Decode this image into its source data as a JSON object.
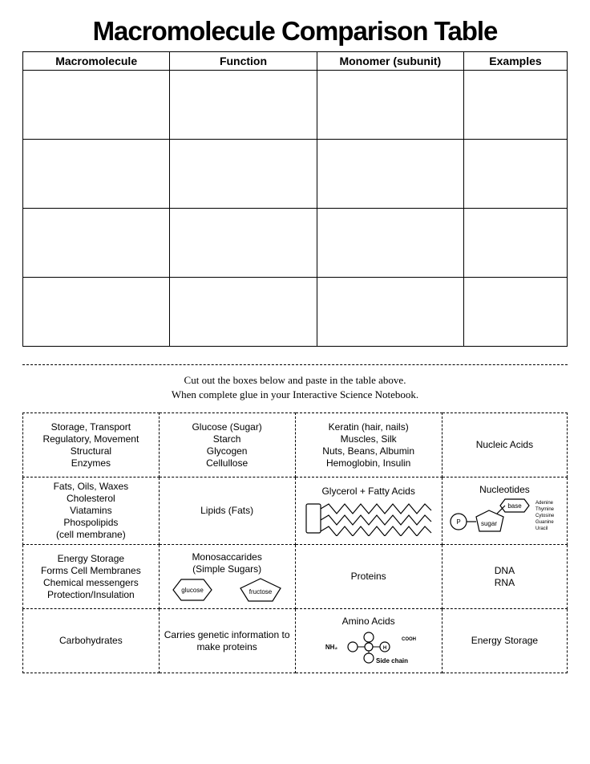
{
  "title": {
    "text": "Macromolecule Comparison Table",
    "fontsize": 33
  },
  "main_table": {
    "columns": [
      "Macromolecule",
      "Function",
      "Monomer (subunit)",
      "Examples"
    ],
    "header_fontsize": 14,
    "col_widths_pct": [
      27,
      27,
      27,
      19
    ],
    "blank_rows": 4
  },
  "instructions": {
    "line1": "Cut out the boxes below and paste in the table above.",
    "line2": "When complete glue in your Interactive Science Notebook.",
    "fontsize": 13
  },
  "cut_table": {
    "fontsize": 12,
    "col_widths_pct": [
      25,
      25,
      27,
      23
    ],
    "rows": [
      [
        {
          "type": "lines",
          "lines": [
            "Storage, Transport",
            "Regulatory, Movement",
            "Structural",
            "Enzymes"
          ]
        },
        {
          "type": "lines",
          "lines": [
            "Glucose (Sugar)",
            "Starch",
            "Glycogen",
            "Cellullose"
          ]
        },
        {
          "type": "lines",
          "lines": [
            "Keratin (hair, nails)",
            "Muscles, Silk",
            "Nuts, Beans, Albumin",
            "Hemoglobin, Insulin"
          ]
        },
        {
          "type": "lines",
          "lines": [
            "Nucleic Acids"
          ]
        }
      ],
      [
        {
          "type": "lines",
          "lines": [
            "Fats, Oils, Waxes",
            "Cholesterol",
            "Viatamins",
            "Phospolipids",
            "(cell membrane)"
          ]
        },
        {
          "type": "lines",
          "lines": [
            "Lipids (Fats)"
          ]
        },
        {
          "type": "glycerol",
          "title": "Glycerol + Fatty Acids"
        },
        {
          "type": "nucleotide",
          "title": "Nucleotides",
          "labels": {
            "p": "P",
            "base": "base",
            "sugar": "sugar"
          },
          "bases": [
            "Adenine",
            "Thymine",
            "Cytosine",
            "Guanine",
            "Uracil"
          ]
        }
      ],
      [
        {
          "type": "lines",
          "lines": [
            "Energy Storage",
            "Forms Cell Membranes",
            "Chemical messengers",
            "Protection/Insulation"
          ]
        },
        {
          "type": "monosacc",
          "title": "Monosaccarides",
          "subtitle": "(Simple Sugars)",
          "labels": {
            "glucose": "glucose",
            "fructose": "fructose"
          }
        },
        {
          "type": "lines",
          "lines": [
            "Proteins"
          ]
        },
        {
          "type": "lines",
          "lines": [
            "DNA",
            "RNA"
          ]
        }
      ],
      [
        {
          "type": "lines",
          "lines": [
            "Carbohydrates"
          ]
        },
        {
          "type": "lines",
          "lines": [
            "Carries genetic information to",
            "make proteins"
          ]
        },
        {
          "type": "amino",
          "title": "Amino Acids",
          "labels": {
            "nh2": "NH₂",
            "h": "H",
            "side": "Side chain",
            "cooh": "COOH"
          }
        },
        {
          "type": "lines",
          "lines": [
            "Energy Storage"
          ]
        }
      ]
    ]
  },
  "colors": {
    "line": "#000000",
    "bg": "#ffffff"
  }
}
